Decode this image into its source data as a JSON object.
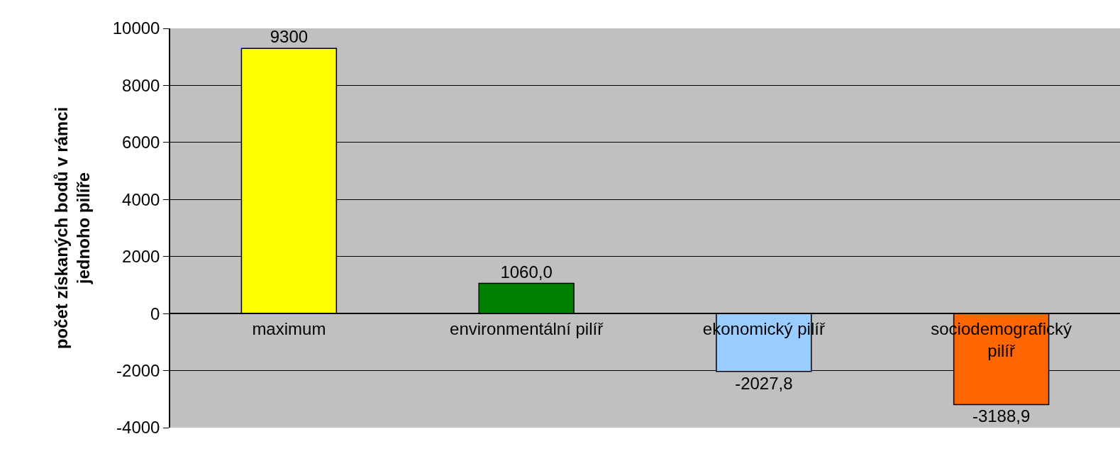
{
  "chart_data": {
    "type": "bar",
    "ylabel": "počet získaných bodů v rámci\njednoho pilíře",
    "categories": [
      "maximum",
      "environmentální pilíř",
      "ekonomický pilíř",
      "sociodemografický\npilíř"
    ],
    "values": [
      9300,
      1060.0,
      -2027.8,
      -3188.9
    ],
    "value_labels": [
      "9300",
      "1060,0",
      "-2027,8",
      "-3188,9"
    ],
    "colors": [
      "#ffff00",
      "#008000",
      "#99ccff",
      "#ff6600"
    ],
    "ylim": [
      -4000,
      10000
    ],
    "yticks": [
      -4000,
      -2000,
      0,
      2000,
      4000,
      6000,
      8000,
      10000
    ],
    "grid": "y",
    "legend": false
  }
}
